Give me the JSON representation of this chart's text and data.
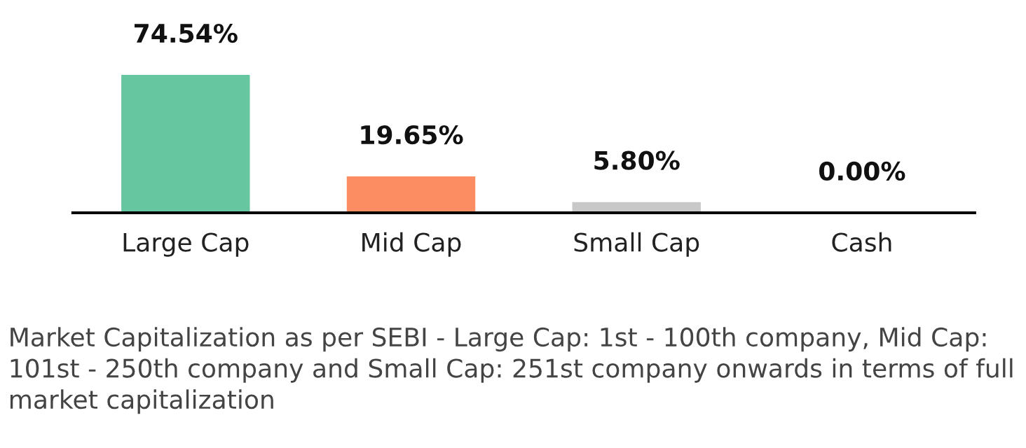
{
  "chart_data": {
    "type": "bar",
    "categories": [
      "Large Cap",
      "Mid Cap",
      "Small Cap",
      "Cash"
    ],
    "values": [
      74.54,
      19.65,
      5.8,
      0.0
    ],
    "value_labels": [
      "74.54%",
      "19.65%",
      "5.80%",
      "0.00%"
    ],
    "colors": [
      "#66c69f",
      "#fc8d62",
      "#c8c8c8",
      "#c8c8c8"
    ],
    "grid": false,
    "legend": false,
    "annotations": [
      "Market Capitalization as per SEBI - Large Cap: 1st - 100th company, Mid Cap: 101st - 250th company and Small Cap: 251st company onwards in terms of full market capitalization"
    ]
  }
}
